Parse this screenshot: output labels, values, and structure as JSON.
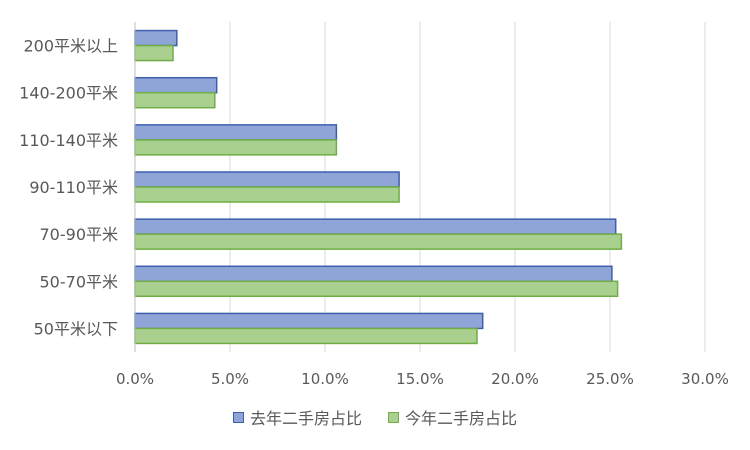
{
  "chart_data": {
    "type": "bar",
    "orientation": "horizontal",
    "categories": [
      "200平米以上",
      "140-200平米",
      "110-140平米",
      "90-110平米",
      "70-90平米",
      "50-70平米",
      "50平米以下"
    ],
    "series": [
      {
        "name": "去年二手房占比",
        "color": "#8fa5d8",
        "border": "#3f5fae",
        "values": [
          0.022,
          0.043,
          0.106,
          0.139,
          0.253,
          0.251,
          0.183
        ]
      },
      {
        "name": "今年二手房占比",
        "color": "#a9d08e",
        "border": "#70ad47",
        "values": [
          0.02,
          0.042,
          0.106,
          0.139,
          0.256,
          0.254,
          0.18
        ]
      }
    ],
    "xlim": [
      0,
      0.3
    ],
    "xticks": [
      "0.0%",
      "5.0%",
      "10.0%",
      "15.0%",
      "20.0%",
      "25.0%",
      "30.0%"
    ],
    "grid": true,
    "legend_position": "bottom"
  }
}
